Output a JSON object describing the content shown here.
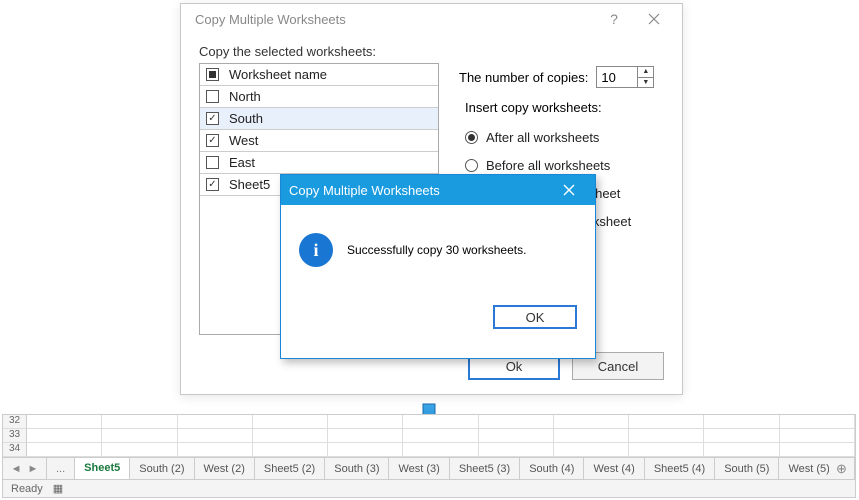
{
  "dialog": {
    "title": "Copy Multiple Worksheets",
    "help_glyph": "?",
    "copy_label": "Copy the selected worksheets:",
    "header_label": "Worksheet name",
    "sheets": [
      {
        "name": "North",
        "checked": false,
        "selected": false
      },
      {
        "name": "South",
        "checked": true,
        "selected": true
      },
      {
        "name": "West",
        "checked": true,
        "selected": false
      },
      {
        "name": "East",
        "checked": false,
        "selected": false
      },
      {
        "name": "Sheet5",
        "checked": true,
        "selected": false
      }
    ],
    "copies_label": "The number of copies:",
    "copies_value": "10",
    "insert_label": "Insert copy worksheets:",
    "radios": [
      {
        "label": "After all worksheets",
        "on": true
      },
      {
        "label": "Before all worksheets",
        "on": false
      },
      {
        "label": "After current worksheet",
        "on": false
      },
      {
        "label": "Before current worksheet",
        "on": false
      }
    ],
    "ok": "Ok",
    "cancel": "Cancel"
  },
  "msg": {
    "title": "Copy Multiple Worksheets",
    "text": "Successfully copy 30 worksheets.",
    "ok": "OK"
  },
  "arrow": {
    "fill_top": "#3aa7e8",
    "fill_bottom": "#1f78c8",
    "stroke": "#186aa8"
  },
  "excel": {
    "rows": [
      "32",
      "33",
      "34"
    ],
    "tabs": [
      {
        "label": "...",
        "kind": "ellips"
      },
      {
        "label": "Sheet5",
        "kind": "active"
      },
      {
        "label": "South (2)",
        "kind": "normal"
      },
      {
        "label": "West (2)",
        "kind": "normal"
      },
      {
        "label": "Sheet5 (2)",
        "kind": "normal"
      },
      {
        "label": "South (3)",
        "kind": "normal"
      },
      {
        "label": "West (3)",
        "kind": "normal"
      },
      {
        "label": "Sheet5 (3)",
        "kind": "normal"
      },
      {
        "label": "South (4)",
        "kind": "normal"
      },
      {
        "label": "West (4)",
        "kind": "normal"
      },
      {
        "label": "Sheet5 (4)",
        "kind": "normal"
      },
      {
        "label": "South (5)",
        "kind": "normal"
      },
      {
        "label": "West (5)",
        "kind": "normal"
      },
      {
        "label": "Sh",
        "kind": "normal"
      },
      {
        "label": "...",
        "kind": "ellips"
      }
    ],
    "status": "Ready",
    "nav_left": "◄",
    "nav_right": "►",
    "new_tab": "⊕",
    "rec_icon": "▦"
  }
}
